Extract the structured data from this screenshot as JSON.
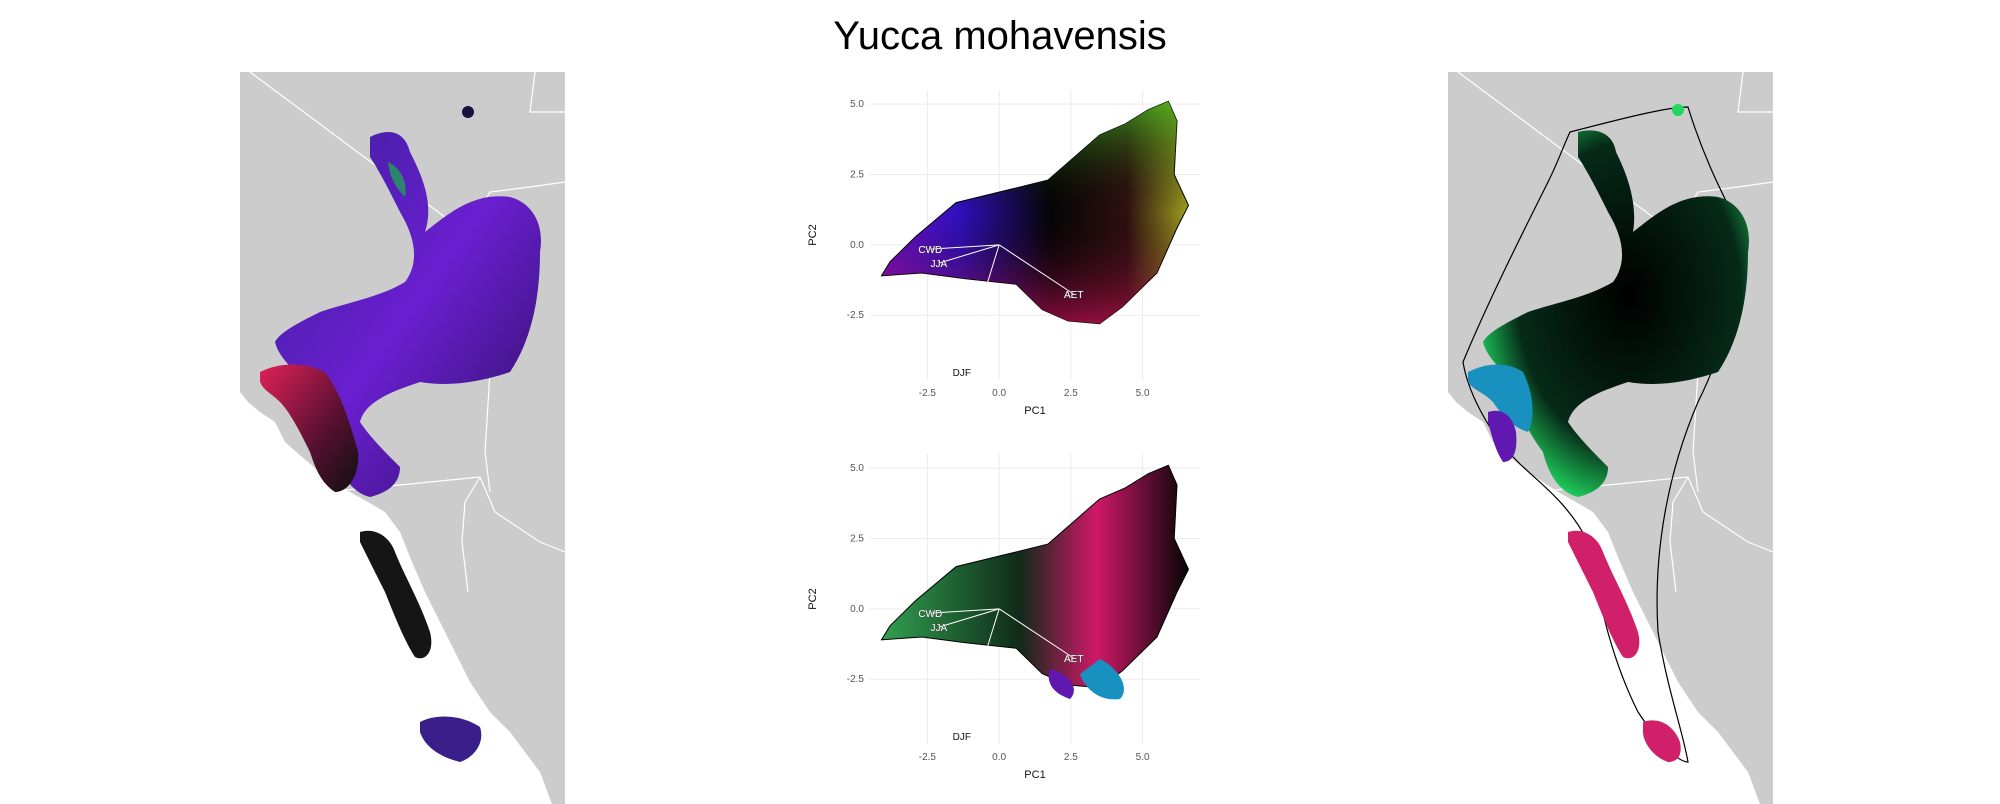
{
  "title": "Yucca mohavensis",
  "colors": {
    "land": "#cccccc",
    "border": "#ffffff",
    "grid": "#ebebeb"
  },
  "chart_data": [
    {
      "type": "scatter",
      "panel": "pca-top",
      "xlabel": "PC1",
      "ylabel": "PC2",
      "xlim": [
        -4.5,
        7
      ],
      "ylim": [
        -4.8,
        5.5
      ],
      "x_ticks": [
        "-2.5",
        "0.0",
        "2.5",
        "5.0"
      ],
      "y_ticks": [
        "5.0",
        "2.5",
        "0.0",
        "-2.5"
      ],
      "x_tick_values": [
        -2.5,
        0,
        2.5,
        5
      ],
      "y_tick_values": [
        5,
        2.5,
        0,
        -2.5
      ],
      "hull": [
        [
          -4.1,
          -1.1
        ],
        [
          -3.8,
          -0.6
        ],
        [
          -2.9,
          0.3
        ],
        [
          -1.5,
          1.5
        ],
        [
          0.3,
          1.95
        ],
        [
          1.7,
          2.3
        ],
        [
          2.6,
          3.1
        ],
        [
          3.5,
          3.9
        ],
        [
          4.4,
          4.3
        ],
        [
          5.2,
          4.8
        ],
        [
          5.9,
          5.1
        ],
        [
          6.2,
          4.4
        ],
        [
          6.1,
          2.5
        ],
        [
          6.6,
          1.4
        ],
        [
          6.2,
          0.6
        ],
        [
          5.5,
          -1.0
        ],
        [
          4.3,
          -2.2
        ],
        [
          3.5,
          -2.8
        ],
        [
          2.4,
          -2.7
        ],
        [
          1.5,
          -2.3
        ],
        [
          0.6,
          -1.4
        ],
        [
          -1.2,
          -1.2
        ],
        [
          -2.7,
          -1.0
        ],
        [
          -4.1,
          -1.1
        ]
      ],
      "loadings": [
        {
          "label": "CWD",
          "x": -2.4,
          "y": -0.15
        },
        {
          "label": "JJA",
          "x": -2.1,
          "y": -0.65
        },
        {
          "label": "AET",
          "x": 2.6,
          "y": -1.75
        },
        {
          "label": "DJF",
          "x": -1.3,
          "y": -4.3
        }
      ]
    },
    {
      "type": "scatter",
      "panel": "pca-bottom",
      "xlabel": "PC1",
      "ylabel": "PC2",
      "xlim": [
        -4.5,
        7
      ],
      "ylim": [
        -4.8,
        5.5
      ],
      "x_ticks": [
        "-2.5",
        "0.0",
        "2.5",
        "5.0"
      ],
      "y_ticks": [
        "5.0",
        "2.5",
        "0.0",
        "-2.5"
      ],
      "x_tick_values": [
        -2.5,
        0,
        2.5,
        5
      ],
      "y_tick_values": [
        5,
        2.5,
        0,
        -2.5
      ],
      "loadings": [
        {
          "label": "CWD",
          "x": -2.4,
          "y": -0.15
        },
        {
          "label": "JJA",
          "x": -2.1,
          "y": -0.65
        },
        {
          "label": "AET",
          "x": 2.6,
          "y": -1.75
        },
        {
          "label": "DJF",
          "x": -1.3,
          "y": -4.3
        }
      ]
    }
  ]
}
